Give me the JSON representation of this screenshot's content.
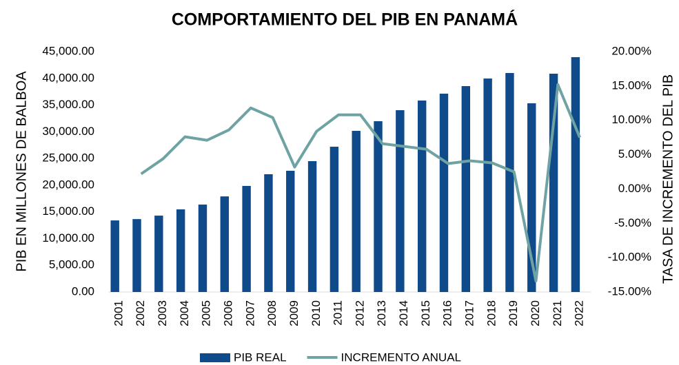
{
  "chart_data": {
    "type": "bar_line",
    "title": "COMPORTAMIENTO DEL PIB EN PANAMÁ",
    "y_label": "PIB EN MILLONES DE BALBOA",
    "y2_label": "TASA DE INCREMENTO DEL PIB",
    "categories": [
      "2001",
      "2002",
      "2003",
      "2004",
      "2005",
      "2006",
      "2007",
      "2008",
      "2009",
      "2010",
      "2011",
      "2012",
      "2013",
      "2014",
      "2015",
      "2016",
      "2017",
      "2018",
      "2019",
      "2020",
      "2021",
      "2022"
    ],
    "series": [
      {
        "name": "PIB REAL",
        "type": "bar",
        "color": "#0f4a8a",
        "values": [
          13400,
          13650,
          14300,
          15470,
          16370,
          17900,
          19860,
          22050,
          22700,
          24500,
          27200,
          30170,
          31980,
          34040,
          35850,
          37130,
          38550,
          39970,
          41000,
          35330,
          40870,
          43970
        ]
      },
      {
        "name": "INCREMENTO ANUAL",
        "type": "line",
        "axis": "y2",
        "color": "#6fa3a3",
        "values": [
          null,
          2.2,
          4.4,
          7.6,
          7.1,
          8.6,
          11.8,
          10.4,
          3.2,
          8.4,
          10.8,
          10.8,
          6.6,
          6.2,
          5.8,
          3.7,
          4.1,
          3.8,
          2.5,
          -13.4,
          15.2,
          7.5
        ]
      }
    ],
    "ylim": [
      0,
      45000
    ],
    "yticks": [
      {
        "value": 0,
        "label": "0.00"
      },
      {
        "value": 5000,
        "label": "5,000.00"
      },
      {
        "value": 10000,
        "label": "10,000.00"
      },
      {
        "value": 15000,
        "label": "15,000.00"
      },
      {
        "value": 20000,
        "label": "20,000.00"
      },
      {
        "value": 25000,
        "label": "25,000.00"
      },
      {
        "value": 30000,
        "label": "30,000.00"
      },
      {
        "value": 35000,
        "label": "35,000.00"
      },
      {
        "value": 40000,
        "label": "40,000.00"
      },
      {
        "value": 45000,
        "label": "45,000.00"
      }
    ],
    "y2lim": [
      -15,
      20
    ],
    "y2ticks": [
      {
        "value": -15,
        "label": "-15.00%"
      },
      {
        "value": -10,
        "label": "-10.00%"
      },
      {
        "value": -5,
        "label": "-5.00%"
      },
      {
        "value": 0,
        "label": "0.00%"
      },
      {
        "value": 5,
        "label": "5.00%"
      },
      {
        "value": 10,
        "label": "10.00%"
      },
      {
        "value": 15,
        "label": "15.00%"
      },
      {
        "value": 20,
        "label": "20.00%"
      }
    ],
    "grid": false,
    "legend": "bottom"
  }
}
